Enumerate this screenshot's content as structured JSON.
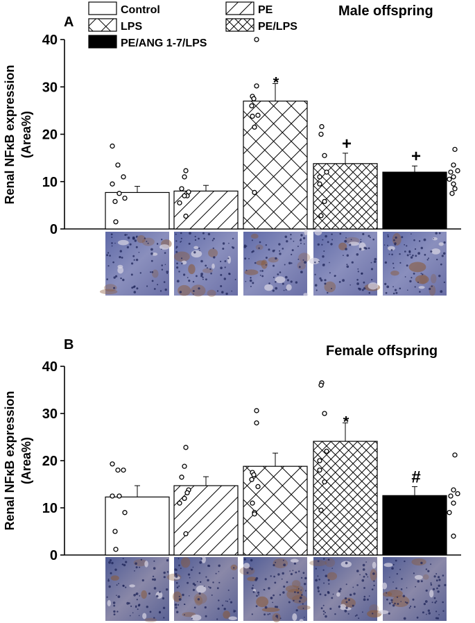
{
  "legend": {
    "items": [
      {
        "key": "control",
        "label": "Control"
      },
      {
        "key": "pe",
        "label": "PE"
      },
      {
        "key": "lps",
        "label": "LPS"
      },
      {
        "key": "pelps",
        "label": "PE/LPS"
      },
      {
        "key": "peang",
        "label": "PE/ANG 1-7/LPS"
      }
    ]
  },
  "chart_data": [
    {
      "type": "bar",
      "panel_label": "A",
      "title": "Male offspring",
      "ylabel_line1": "Renal NFκB expression",
      "ylabel_line2": "(Area%)",
      "ylim": [
        0,
        40
      ],
      "yticks": [
        0,
        10,
        20,
        30,
        40
      ],
      "categories": [
        "Control",
        "PE",
        "LPS",
        "PE/LPS",
        "PE/ANG 1-7/LPS"
      ],
      "values": [
        7.7,
        8.0,
        27.0,
        13.8,
        12.0
      ],
      "errors": [
        1.3,
        1.2,
        3.7,
        2.2,
        1.3
      ],
      "points": [
        [
          17.5,
          13.5,
          11.0,
          9.5,
          7.5,
          6.5,
          5.8,
          1.5
        ],
        [
          12.3,
          11.0,
          8.5,
          7.8,
          7.0,
          7.0,
          5.5,
          2.7
        ],
        [
          40.0,
          30.2,
          28.0,
          27.5,
          26.0,
          24.0,
          23.8,
          21.5,
          7.7
        ],
        [
          21.6,
          20.0,
          15.5,
          12.0,
          11.0,
          9.5,
          5.8,
          2.8
        ],
        [
          16.8,
          13.5,
          12.3,
          12.0,
          11.0,
          10.5,
          9.5,
          8.5,
          7.5
        ]
      ],
      "annotations": [
        "",
        "",
        "*",
        "+",
        "+"
      ]
    },
    {
      "type": "bar",
      "panel_label": "B",
      "title": "Female offspring",
      "ylabel_line1": "Renal NFκB expression",
      "ylabel_line2": "(Area%)",
      "ylim": [
        0,
        40
      ],
      "yticks": [
        0,
        10,
        20,
        30,
        40
      ],
      "categories": [
        "Control",
        "PE",
        "LPS",
        "PE/LPS",
        "PE/ANG 1-7/LPS"
      ],
      "values": [
        12.3,
        14.7,
        18.8,
        24.1,
        12.6
      ],
      "errors": [
        2.4,
        1.9,
        2.8,
        3.9,
        1.9
      ],
      "points": [
        [
          19.3,
          18.0,
          18.0,
          12.5,
          12.5,
          9.0,
          5.0,
          1.2
        ],
        [
          22.8,
          18.8,
          16.5,
          13.8,
          13.2,
          12.0,
          11.0,
          4.5
        ],
        [
          30.6,
          28.0,
          17.5,
          17.0,
          16.0,
          14.5,
          11.0,
          9.0,
          8.7
        ],
        [
          36.5,
          36.0,
          30.0,
          22.0,
          20.0,
          18.0,
          15.5,
          9.5
        ],
        [
          21.2,
          13.8,
          13.0,
          12.5,
          11.0,
          9.0,
          4.0
        ]
      ],
      "annotations": [
        "",
        "",
        "",
        "*",
        "#"
      ]
    }
  ],
  "images": [
    {
      "caption": "micrograph-male-row"
    },
    {
      "caption": "micrograph-female-row"
    }
  ],
  "colors": {
    "axis": "#000000",
    "bar_fill_control": "#ffffff",
    "bar_fill_solid": "#000000"
  }
}
